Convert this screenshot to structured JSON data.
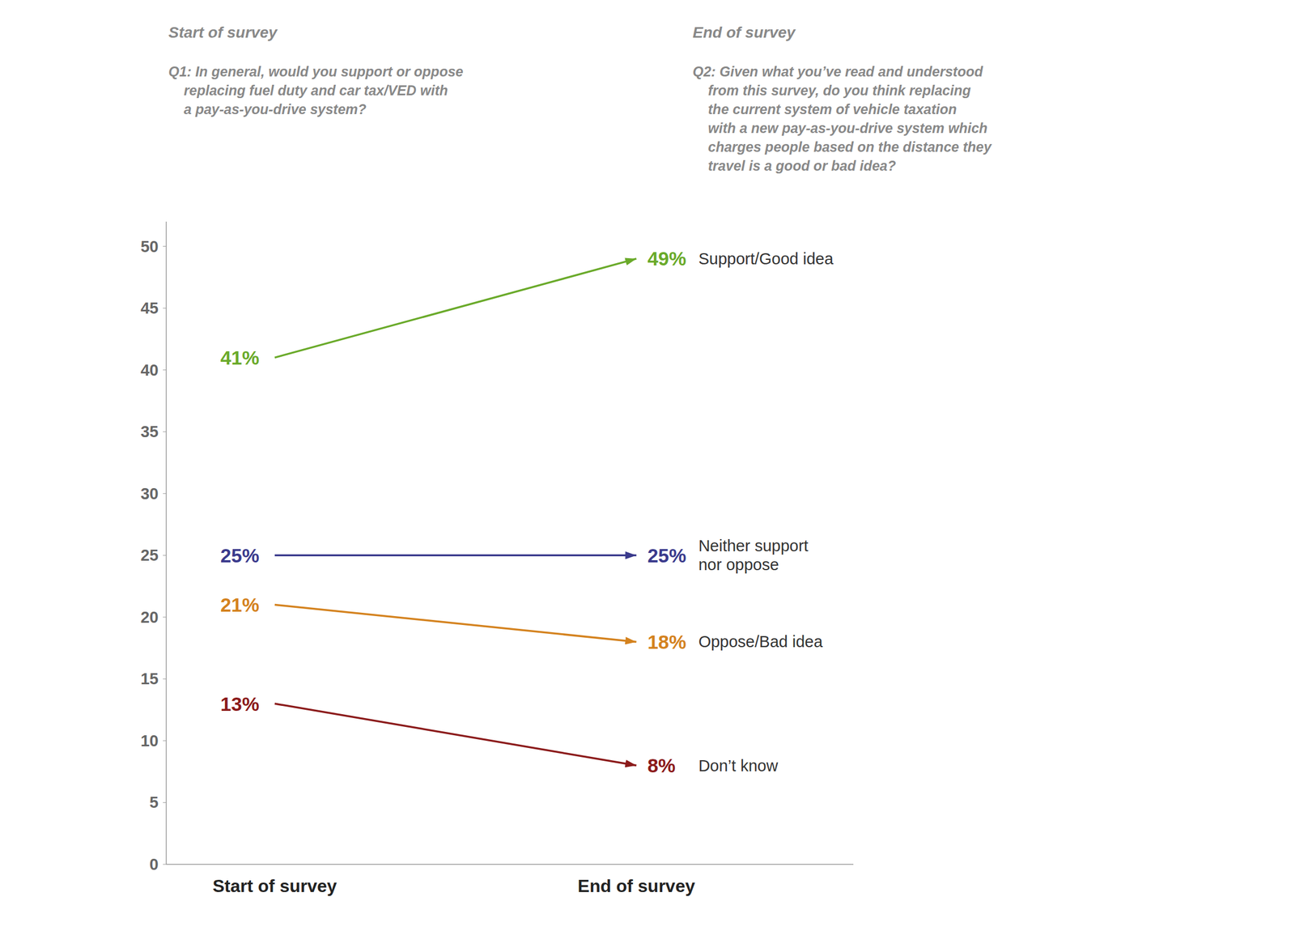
{
  "chart_data": {
    "type": "slope",
    "categories": [
      "Start of survey",
      "End of survey"
    ],
    "series": [
      {
        "name": "Support/Good idea",
        "color": "#6aaa2a",
        "values": [
          41,
          49
        ],
        "value_labels": [
          "41%",
          "49%"
        ]
      },
      {
        "name": "Neither support\nnor oppose",
        "color": "#3a3a8c",
        "values": [
          25,
          25
        ],
        "value_labels": [
          "25%",
          "25%"
        ]
      },
      {
        "name": "Oppose/Bad idea",
        "color": "#d4821e",
        "values": [
          21,
          18
        ],
        "value_labels": [
          "21%",
          "18%"
        ]
      },
      {
        "name": "Don’t know",
        "color": "#8b1a1a",
        "values": [
          13,
          8
        ],
        "value_labels": [
          "13%",
          "8%"
        ]
      }
    ],
    "ylim": [
      0,
      52
    ],
    "yticks": [
      0,
      5,
      10,
      15,
      20,
      25,
      30,
      35,
      40,
      45,
      50
    ],
    "data_labels": true,
    "annotations": [
      "Start of survey",
      "Q1: In general, would you support or oppose\n    replacing fuel duty and car tax/VED with\n    a pay-as-you-drive system?",
      "End of survey",
      "Q2: Given what you’ve read and understood\n    from this survey, do you think replacing\n    the current system of vehicle taxation\n    with a new pay-as-you-drive system which\n    charges people based on the distance they\n    travel is a good or bad idea?"
    ]
  }
}
